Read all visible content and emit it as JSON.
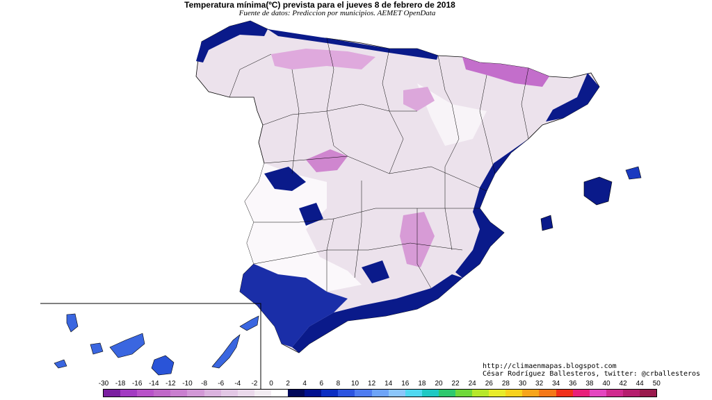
{
  "map": {
    "title": "Temperatura mínima(ºC) prevista para el jueves 8 de febrero de 2018",
    "subtitle": "Fuente de datos: Prediccion por municipios. AEMET OpenData"
  },
  "credits": {
    "blog": "http://climaenmapas.blogspot.com",
    "author": "César Rodríguez Ballesteros, twitter: @crballesteros"
  },
  "legend": {
    "labels": [
      "-30",
      "-18",
      "-16",
      "-14",
      "-12",
      "-10",
      "-8",
      "-6",
      "-4",
      "-2",
      "0",
      "2",
      "4",
      "6",
      "8",
      "10",
      "12",
      "14",
      "16",
      "18",
      "20",
      "22",
      "24",
      "26",
      "28",
      "30",
      "32",
      "34",
      "36",
      "38",
      "40",
      "42",
      "44",
      "50"
    ],
    "colors": [
      "#7a1fa0",
      "#a23bc2",
      "#b852c9",
      "#c068c8",
      "#c97fcf",
      "#d298d6",
      "#dab2de",
      "#e2c7e5",
      "#ead9eb",
      "#f2ecf2",
      "#ffffff",
      "#00085a",
      "#00118f",
      "#0a2ec2",
      "#2b54e0",
      "#4e7cf0",
      "#6ea4f7",
      "#8cc6fa",
      "#4fd8f0",
      "#1fc9c3",
      "#2ec96e",
      "#6fd83a",
      "#b6e82a",
      "#e8ec2a",
      "#f7d21d",
      "#f7a51a",
      "#f47818",
      "#f0301a",
      "#e8207a",
      "#e446c0",
      "#d02a8f",
      "#b51e6e",
      "#9a1a4d",
      "#7d1428"
    ]
  },
  "icons": {
    "peninsula": "iberian-peninsula-shape",
    "islands": "balearic-canary-islands-shapes"
  }
}
